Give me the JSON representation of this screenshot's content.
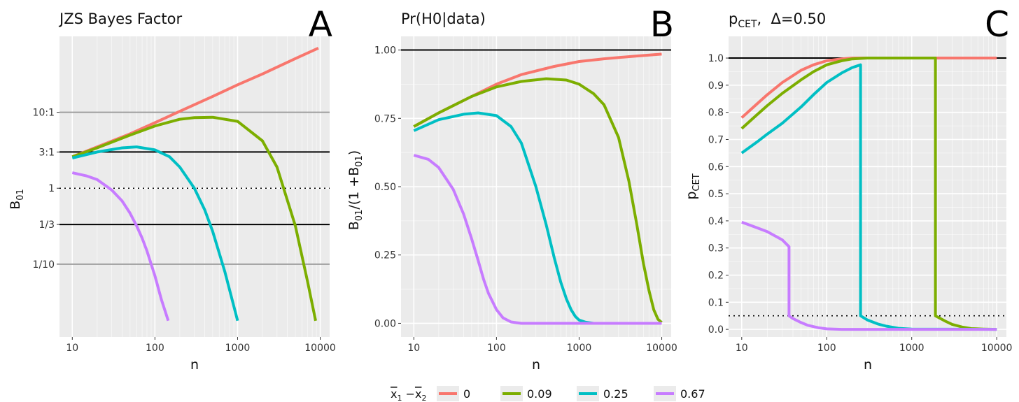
{
  "chart_data": [
    {
      "type": "line",
      "panel": "A",
      "title": "JZS Bayes Factor",
      "xlabel": "n",
      "ylabel_main": "B",
      "ylabel_sub": "01",
      "x_scale": "log",
      "xlim": [
        7,
        13000
      ],
      "x_ticks": [
        "10",
        "100",
        "1000",
        "10000"
      ],
      "y_scale": "log",
      "ylim": [
        0.011,
        100
      ],
      "y_ticks": [
        {
          "value": 10,
          "label": "10:1"
        },
        {
          "value": 3,
          "label": "3:1"
        },
        {
          "value": 1,
          "label": "1"
        },
        {
          "value": 0.3333,
          "label": "1/3"
        },
        {
          "value": 0.1,
          "label": "1/10"
        }
      ],
      "reference_lines": [
        {
          "y": 10,
          "style": "gray"
        },
        {
          "y": 3,
          "style": "black"
        },
        {
          "y": 1,
          "style": "dotted"
        },
        {
          "y": 0.3333,
          "style": "black"
        },
        {
          "y": 0.1,
          "style": "gray"
        }
      ],
      "series": [
        {
          "name": "0",
          "color": "#F8766D",
          "x": [
            10,
            20,
            50,
            100,
            200,
            500,
            1000,
            2000,
            5000,
            9500
          ],
          "y": [
            2.6,
            3.5,
            5.2,
            7.3,
            10.3,
            16.2,
            23,
            32,
            51,
            70
          ]
        },
        {
          "name": "0.09",
          "color": "#7CAE00",
          "x": [
            10,
            20,
            50,
            100,
            200,
            300,
            500,
            1000,
            2000,
            3000,
            5000,
            7000,
            8800
          ],
          "y": [
            2.6,
            3.4,
            5,
            6.6,
            8.1,
            8.5,
            8.6,
            7.6,
            4.2,
            1.9,
            0.32,
            0.06,
            0.018
          ]
        },
        {
          "name": "0.25",
          "color": "#00BFC4",
          "x": [
            10,
            20,
            40,
            60,
            100,
            150,
            200,
            300,
            400,
            500,
            700,
            1000
          ],
          "y": [
            2.5,
            3.0,
            3.4,
            3.5,
            3.2,
            2.6,
            1.9,
            1.0,
            0.52,
            0.27,
            0.08,
            0.018
          ]
        },
        {
          "name": "0.67",
          "color": "#C77CFF",
          "x": [
            10,
            15,
            20,
            30,
            40,
            50,
            60,
            70,
            80,
            100,
            120,
            145
          ],
          "y": [
            1.6,
            1.45,
            1.3,
            0.95,
            0.68,
            0.47,
            0.32,
            0.22,
            0.15,
            0.07,
            0.034,
            0.018
          ]
        }
      ]
    },
    {
      "type": "line",
      "panel": "B",
      "title": "Pr(H0|data)",
      "xlabel": "n",
      "ylabel_main": "B",
      "ylabel_sub": "01",
      "ylabel_mid": "/(1 +B",
      "ylabel_sub2": "01",
      "ylabel_end": ")",
      "x_scale": "log",
      "xlim": [
        7,
        13000
      ],
      "x_ticks": [
        "10",
        "100",
        "1000",
        "10000"
      ],
      "y_scale": "linear",
      "ylim": [
        -0.05,
        1.05
      ],
      "y_ticks": [
        {
          "value": 0,
          "label": "0.00"
        },
        {
          "value": 0.25,
          "label": "0.25"
        },
        {
          "value": 0.5,
          "label": "0.50"
        },
        {
          "value": 0.75,
          "label": "0.75"
        },
        {
          "value": 1,
          "label": "1.00"
        }
      ],
      "reference_lines": [
        {
          "y": 1,
          "style": "black"
        }
      ],
      "series": [
        {
          "name": "0",
          "color": "#F8766D",
          "x": [
            10,
            20,
            50,
            100,
            200,
            500,
            1000,
            2000,
            5000,
            10000
          ],
          "y": [
            0.72,
            0.77,
            0.83,
            0.875,
            0.91,
            0.94,
            0.958,
            0.968,
            0.978,
            0.985
          ]
        },
        {
          "name": "0.09",
          "color": "#7CAE00",
          "x": [
            10,
            20,
            50,
            100,
            200,
            400,
            700,
            1000,
            1500,
            2000,
            3000,
            4000,
            5000,
            6000,
            7000,
            8000,
            9000,
            10000
          ],
          "y": [
            0.72,
            0.77,
            0.83,
            0.865,
            0.885,
            0.895,
            0.89,
            0.875,
            0.84,
            0.8,
            0.68,
            0.52,
            0.36,
            0.22,
            0.12,
            0.05,
            0.015,
            0.003
          ]
        },
        {
          "name": "0.25",
          "color": "#00BFC4",
          "x": [
            10,
            20,
            40,
            60,
            100,
            150,
            200,
            300,
            400,
            500,
            600,
            700,
            800,
            900,
            1000,
            1200,
            1500,
            2000,
            10000
          ],
          "y": [
            0.705,
            0.745,
            0.765,
            0.77,
            0.76,
            0.72,
            0.66,
            0.5,
            0.36,
            0.24,
            0.15,
            0.09,
            0.05,
            0.025,
            0.012,
            0.004,
            0.0,
            0.0,
            0.0
          ]
        },
        {
          "name": "0.67",
          "color": "#C77CFF",
          "x": [
            10,
            15,
            20,
            30,
            40,
            50,
            60,
            70,
            80,
            100,
            120,
            150,
            200,
            300,
            10000
          ],
          "y": [
            0.615,
            0.6,
            0.57,
            0.49,
            0.4,
            0.31,
            0.23,
            0.16,
            0.11,
            0.05,
            0.02,
            0.005,
            0.0,
            0.0,
            0.0
          ]
        }
      ]
    },
    {
      "type": "line",
      "panel": "C",
      "title_main": "p",
      "title_sub": "CET",
      "title_rest": ",  Δ=0.50",
      "xlabel": "n",
      "ylabel_main": "p",
      "ylabel_sub": "CET",
      "x_scale": "log",
      "xlim": [
        7,
        13000
      ],
      "x_ticks": [
        "10",
        "100",
        "1000",
        "10000"
      ],
      "y_scale": "linear",
      "ylim": [
        -0.028,
        1.08
      ],
      "y_ticks": [
        {
          "value": 0,
          "label": "0.0"
        },
        {
          "value": 0.1,
          "label": "0.1"
        },
        {
          "value": 0.2,
          "label": "0.2"
        },
        {
          "value": 0.3,
          "label": "0.3"
        },
        {
          "value": 0.4,
          "label": "0.4"
        },
        {
          "value": 0.5,
          "label": "0.5"
        },
        {
          "value": 0.6,
          "label": "0.6"
        },
        {
          "value": 0.7,
          "label": "0.7"
        },
        {
          "value": 0.8,
          "label": "0.8"
        },
        {
          "value": 0.9,
          "label": "0.9"
        },
        {
          "value": 1,
          "label": "1.0"
        }
      ],
      "reference_lines": [
        {
          "y": 1,
          "style": "black"
        },
        {
          "y": 0.05,
          "style": "dotted"
        }
      ],
      "series": [
        {
          "name": "0",
          "color": "#F8766D",
          "x": [
            10,
            15,
            20,
            30,
            50,
            70,
            100,
            150,
            200,
            300,
            10000
          ],
          "y": [
            0.78,
            0.83,
            0.865,
            0.91,
            0.955,
            0.975,
            0.99,
            0.997,
            1.0,
            1.0,
            1.0
          ]
        },
        {
          "name": "0.09",
          "color": "#7CAE00",
          "x": [
            10,
            15,
            20,
            30,
            50,
            70,
            100,
            150,
            200,
            300,
            500,
            1900,
            1900,
            2500,
            3000,
            4000,
            5000,
            7000,
            10000
          ],
          "y": [
            0.74,
            0.79,
            0.825,
            0.87,
            0.92,
            0.95,
            0.975,
            0.99,
            0.997,
            1.0,
            1.0,
            1.0,
            0.05,
            0.03,
            0.018,
            0.008,
            0.003,
            0.001,
            0.0
          ]
        },
        {
          "name": "0.25",
          "color": "#00BFC4",
          "x": [
            10,
            15,
            20,
            30,
            50,
            70,
            100,
            150,
            200,
            250,
            250,
            300,
            400,
            500,
            700,
            1000,
            10000
          ],
          "y": [
            0.65,
            0.69,
            0.72,
            0.76,
            0.82,
            0.865,
            0.91,
            0.945,
            0.965,
            0.975,
            0.05,
            0.035,
            0.02,
            0.012,
            0.004,
            0.001,
            0.0
          ]
        },
        {
          "name": "0.67",
          "color": "#C77CFF",
          "x": [
            10,
            15,
            20,
            30,
            36,
            36,
            40,
            50,
            60,
            80,
            100,
            150,
            200,
            10000
          ],
          "y": [
            0.395,
            0.375,
            0.36,
            0.33,
            0.305,
            0.05,
            0.04,
            0.025,
            0.015,
            0.006,
            0.002,
            0.0,
            0.0,
            0.0
          ]
        }
      ]
    }
  ],
  "panel_labels": [
    "A",
    "B",
    "C"
  ],
  "legend": {
    "title_parts": [
      "x",
      "1",
      " −",
      "x",
      "2"
    ],
    "items": [
      {
        "label": "0",
        "color": "#F8766D"
      },
      {
        "label": "0.09",
        "color": "#7CAE00"
      },
      {
        "label": "0.25",
        "color": "#00BFC4"
      },
      {
        "label": "0.67",
        "color": "#C77CFF"
      }
    ]
  },
  "colors": {
    "panel_bg": "#EBEBEB",
    "grid_major": "#FFFFFF"
  }
}
